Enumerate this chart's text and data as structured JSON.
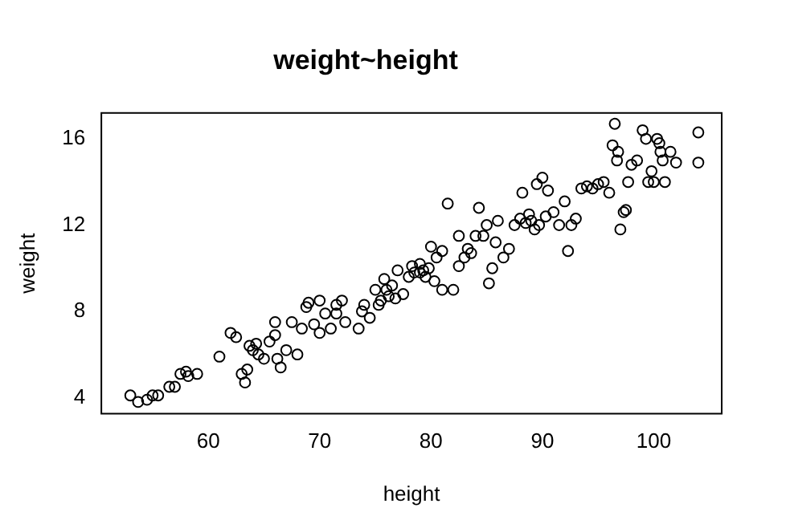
{
  "chart_data": {
    "type": "scatter",
    "title": "weight~height",
    "xlabel": "height",
    "ylabel": "weight",
    "xlim": [
      50.4,
      106.1
    ],
    "ylim": [
      3.25,
      17.2
    ],
    "xticks": [
      60,
      70,
      80,
      90,
      100
    ],
    "yticks": [
      4,
      8,
      12,
      16
    ],
    "grid": false,
    "legend": false,
    "marker": "circle",
    "series": [
      {
        "color": "#000000",
        "x": [
          53,
          53.7,
          54.5,
          55,
          55.5,
          56.5,
          57,
          57.5,
          58,
          58.2,
          59,
          61,
          62,
          62.5,
          63,
          63.3,
          63.5,
          63.7,
          64,
          64.3,
          64.5,
          65,
          65.5,
          66,
          66,
          66.2,
          66.5,
          67,
          67.5,
          68,
          68.4,
          68.8,
          69,
          69.5,
          70,
          70,
          70.5,
          71,
          71.5,
          71.5,
          72,
          72.3,
          73.5,
          73.8,
          74,
          74.5,
          75,
          75.3,
          75.5,
          75.8,
          76,
          76.2,
          76.5,
          76.8,
          77,
          77.5,
          78,
          78.3,
          78.5,
          79,
          79,
          79.3,
          79.5,
          79.8,
          80,
          80.3,
          80.5,
          81,
          81,
          81.5,
          82,
          82.5,
          82.5,
          83,
          83.3,
          83.6,
          84,
          84.3,
          84.7,
          85,
          85.2,
          85.5,
          85.8,
          86,
          86.5,
          87,
          87.5,
          88,
          88.2,
          88.5,
          88.8,
          89,
          89.3,
          89.5,
          89.7,
          90,
          90.3,
          90.5,
          91,
          91.5,
          92,
          92.3,
          92.6,
          93,
          93.5,
          94,
          94.5,
          95,
          95.5,
          96,
          96.3,
          96.5,
          96.7,
          96.8,
          97,
          97.3,
          97.5,
          97.7,
          98,
          98.5,
          99,
          99.3,
          99.5,
          99.8,
          100,
          100.3,
          100.5,
          100.6,
          100.8,
          101,
          101.5,
          102,
          104,
          104
        ],
        "values": [
          4.1,
          3.8,
          3.9,
          4.1,
          4.1,
          4.5,
          4.5,
          5.1,
          5.2,
          5,
          5.1,
          5.9,
          7,
          6.8,
          5.1,
          4.7,
          5.3,
          6.4,
          6.2,
          6.5,
          6,
          5.8,
          6.6,
          6.9,
          7.5,
          5.8,
          5.4,
          6.2,
          7.5,
          6,
          7.2,
          8.2,
          8.4,
          7.4,
          7,
          8.5,
          7.9,
          7.2,
          7.9,
          8.3,
          8.5,
          7.5,
          7.2,
          8,
          8.3,
          7.7,
          9,
          8.3,
          8.5,
          9.5,
          9,
          8.7,
          9.2,
          8.6,
          9.9,
          8.8,
          9.6,
          10.1,
          9.8,
          9.8,
          10.2,
          9.9,
          9.6,
          10,
          11,
          9.4,
          10.5,
          10.8,
          9,
          13,
          9,
          10.1,
          11.5,
          10.5,
          10.9,
          10.7,
          11.5,
          12.8,
          11.5,
          12,
          9.3,
          10,
          11.2,
          12.2,
          10.5,
          10.9,
          12,
          12.3,
          13.5,
          12.1,
          12.5,
          12.2,
          11.8,
          13.9,
          12,
          14.2,
          12.4,
          13.6,
          12.6,
          12,
          13.1,
          10.8,
          12,
          12.3,
          13.7,
          13.8,
          13.7,
          13.9,
          14,
          13.5,
          15.7,
          16.7,
          15,
          15.4,
          11.8,
          12.6,
          12.7,
          14,
          14.8,
          15,
          16.4,
          16,
          14,
          14.5,
          14,
          16,
          15.8,
          15.4,
          15,
          14,
          15.4,
          14.9,
          16.3,
          14.9
        ]
      }
    ]
  }
}
